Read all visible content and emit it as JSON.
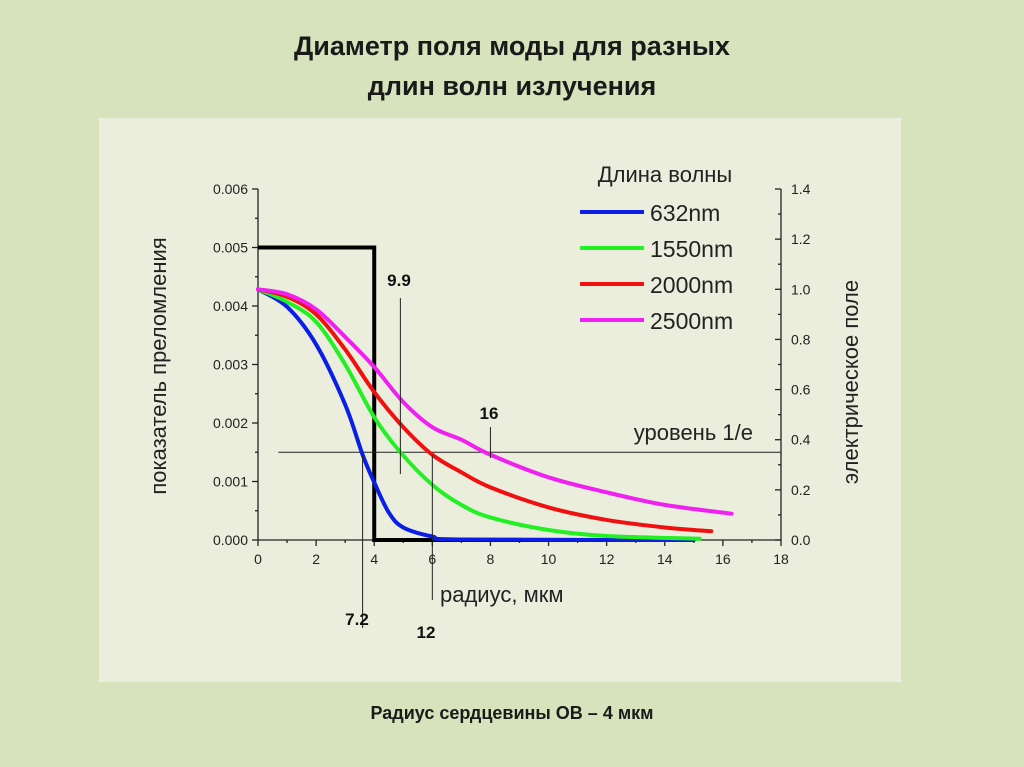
{
  "title_line1": "Диаметр поля моды для разных",
  "title_line2": "длин волн излучения",
  "footer": "Радиус сердцевины ОВ – 4 мкм",
  "chart_data": {
    "type": "line",
    "xlabel": "радиус, мкм",
    "ylabel_left": "показатель преломления",
    "ylabel_right": "электрическое поле",
    "xlim": [
      0,
      18
    ],
    "ylim_left": [
      0,
      0.006
    ],
    "ylim_right": [
      0,
      1.4
    ],
    "x_ticks": [
      "0",
      "2",
      "4",
      "6",
      "8",
      "10",
      "12",
      "14",
      "16",
      "18"
    ],
    "y_ticks_left": [
      "0.000",
      "0.001",
      "0.002",
      "0.003",
      "0.004",
      "0.005",
      "0.006"
    ],
    "y_ticks_right": [
      "0.0",
      "0.2",
      "0.4",
      "0.6",
      "0.8",
      "1.0",
      "1.2",
      "1.4"
    ],
    "legend_title": "Длина волны",
    "legend_position": "top-right",
    "index_profile": {
      "name": "refractive index step",
      "x": [
        0,
        4,
        4,
        15
      ],
      "y": [
        0.005,
        0.005,
        0,
        0
      ],
      "color": "#000000"
    },
    "series": [
      {
        "name": "632nm",
        "color": "#0a1ee6",
        "x": [
          0,
          1,
          2,
          3,
          3.6,
          4,
          4.5,
          5,
          6,
          7,
          15
        ],
        "y": [
          1.0,
          0.93,
          0.78,
          0.54,
          0.34,
          0.23,
          0.11,
          0.05,
          0.014,
          0.002,
          0
        ]
      },
      {
        "name": "1550nm",
        "color": "#22f022",
        "x": [
          0,
          1,
          2,
          3,
          4,
          4.9,
          6,
          7,
          8,
          10,
          12,
          15.2
        ],
        "y": [
          1.0,
          0.95,
          0.87,
          0.7,
          0.49,
          0.35,
          0.22,
          0.14,
          0.09,
          0.04,
          0.016,
          0.005
        ]
      },
      {
        "name": "2000nm",
        "color": "#f01010",
        "x": [
          0,
          1,
          2,
          3,
          4,
          5,
          6,
          7,
          8,
          10,
          12,
          14,
          15.6
        ],
        "y": [
          1.0,
          0.97,
          0.9,
          0.76,
          0.59,
          0.45,
          0.34,
          0.27,
          0.21,
          0.13,
          0.08,
          0.05,
          0.035
        ]
      },
      {
        "name": "2500nm",
        "color": "#f020f0",
        "x": [
          0,
          1,
          2,
          3,
          4,
          5,
          6,
          7,
          8,
          10,
          12,
          14,
          16.3
        ],
        "y": [
          1.0,
          0.98,
          0.92,
          0.81,
          0.69,
          0.55,
          0.45,
          0.4,
          0.34,
          0.25,
          0.19,
          0.14,
          0.105
        ]
      }
    ],
    "level_line": {
      "label": "уровень 1/е",
      "value": 0.35,
      "x_range": [
        0.7,
        18
      ]
    },
    "annotations": [
      {
        "label": "7.2",
        "x": 3.6
      },
      {
        "label": "9.9",
        "x": 4.9
      },
      {
        "label": "12",
        "x": 6
      },
      {
        "label": "16",
        "x": 8
      }
    ]
  }
}
